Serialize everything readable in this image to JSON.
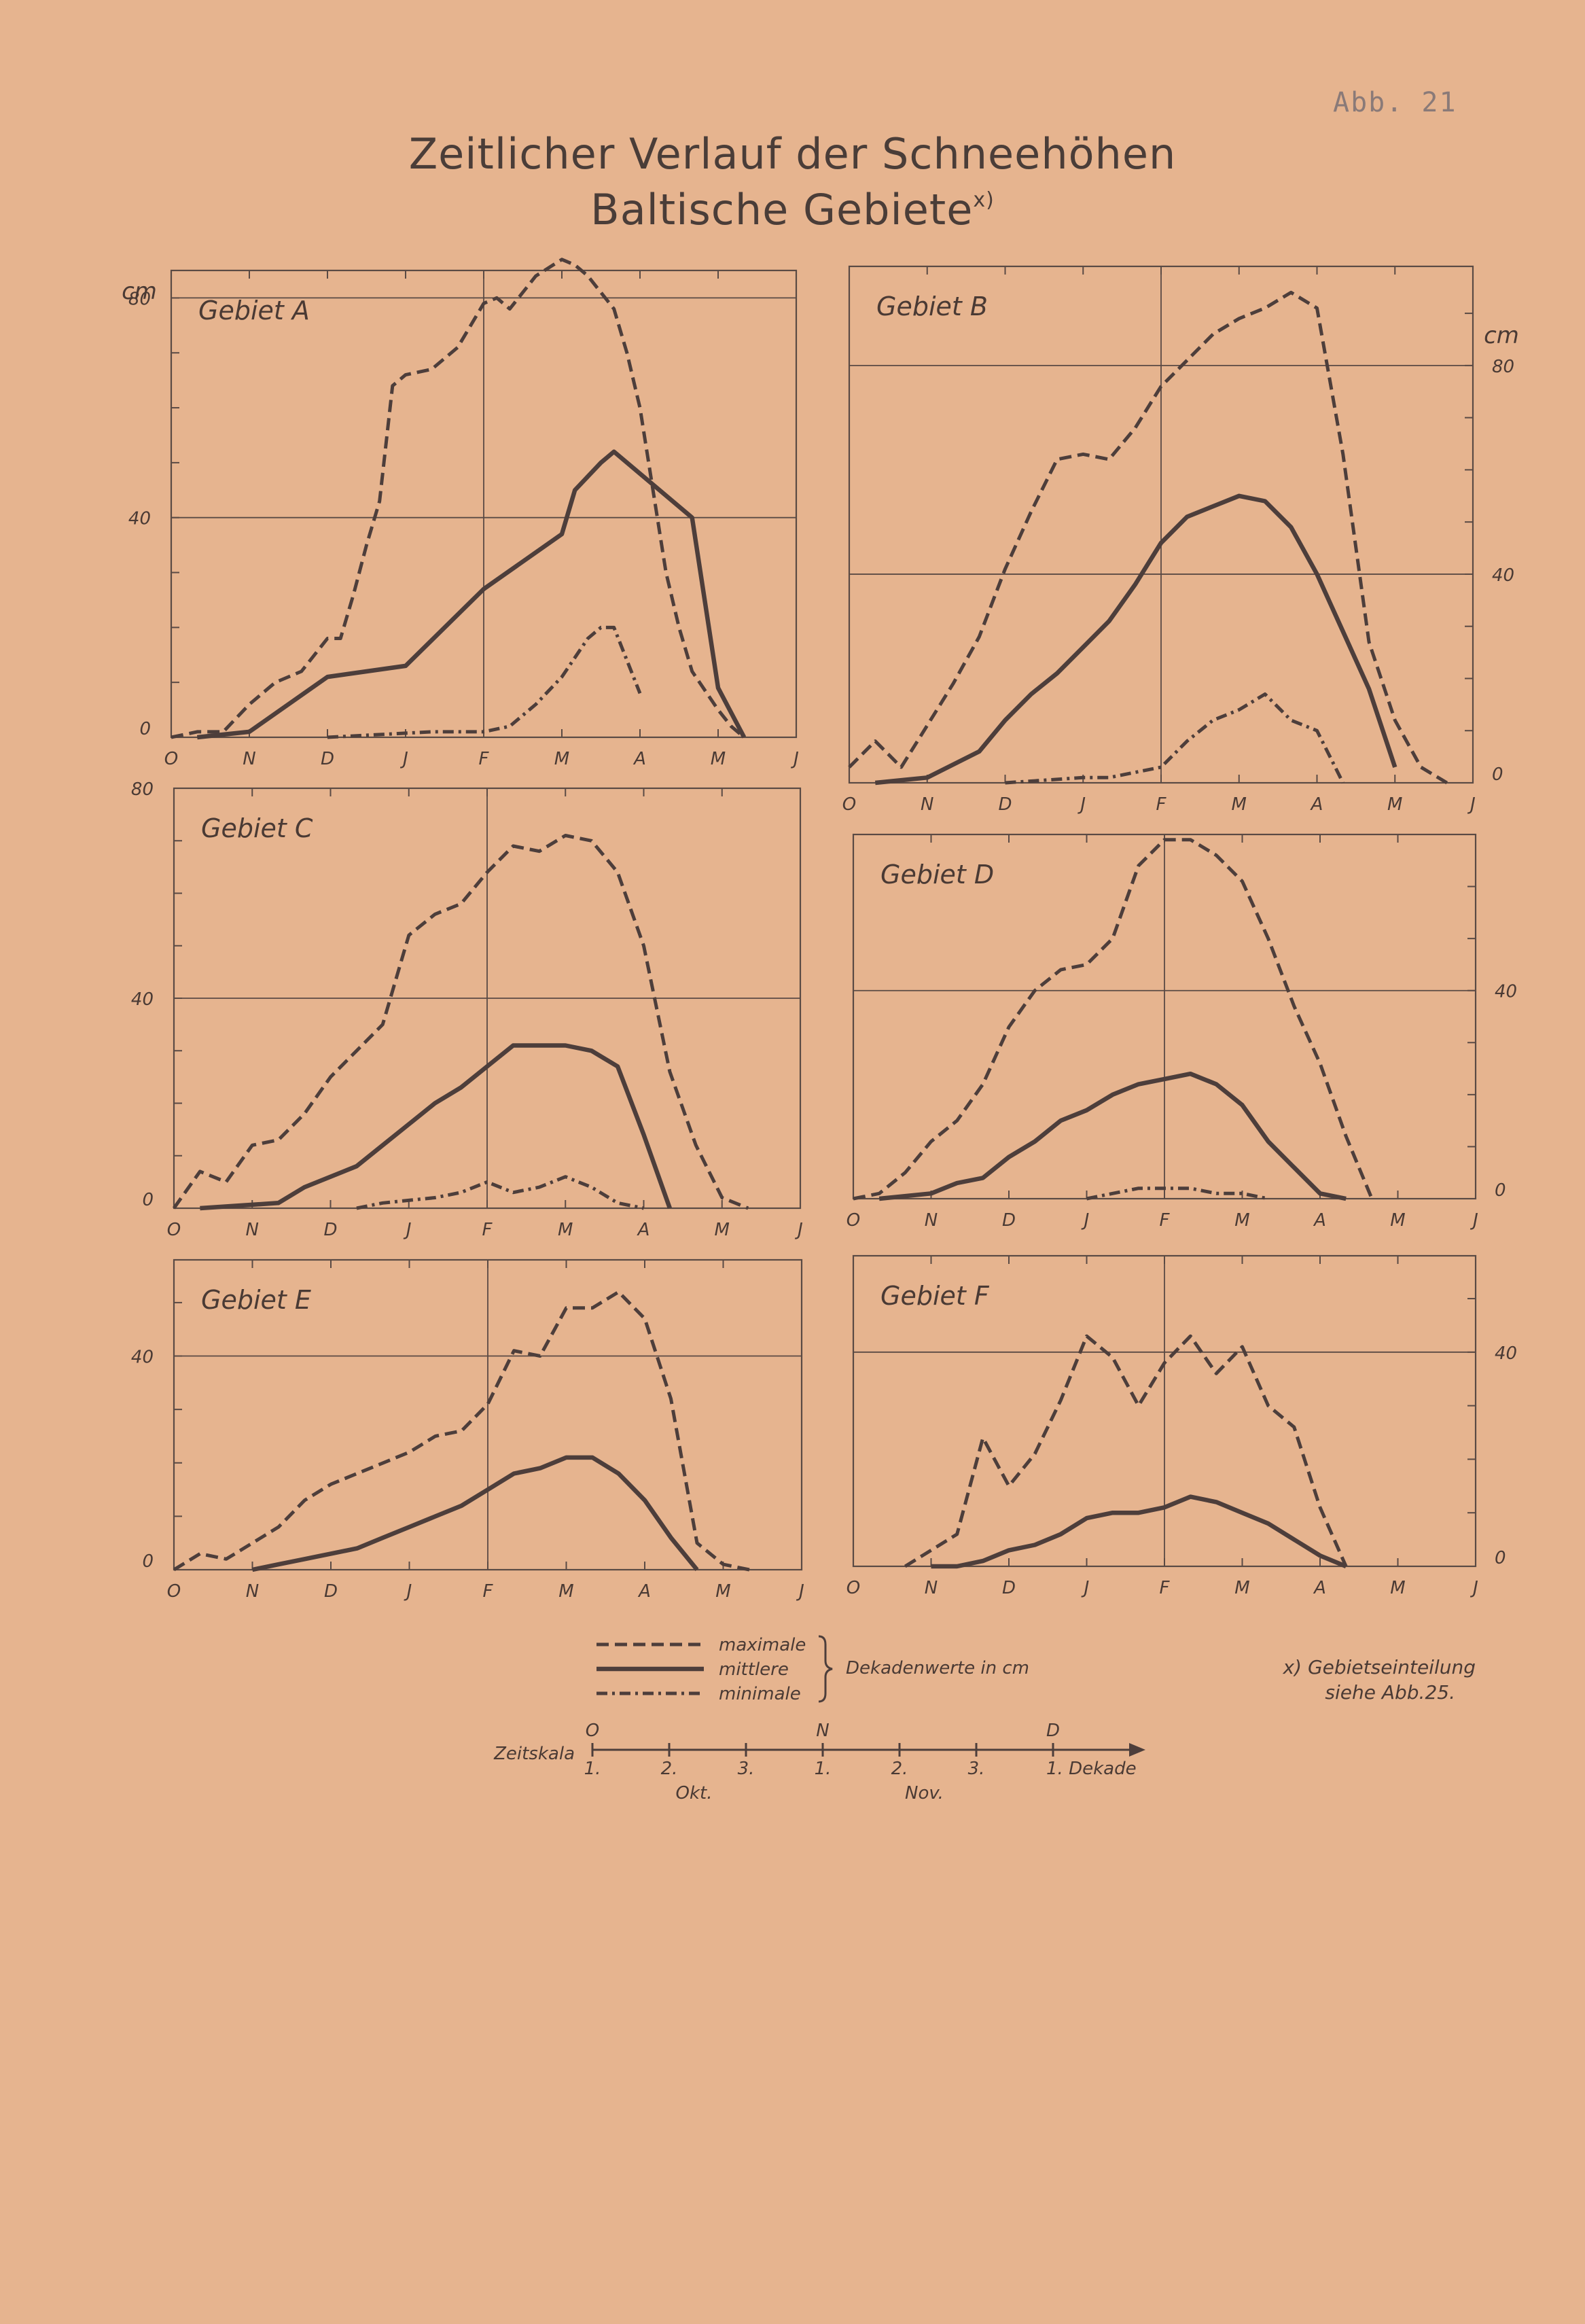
{
  "page_stamp": "Abb. 21",
  "title_line1": "Zeitlicher Verlauf der Schneehöhen",
  "title_line2": "Baltische Gebiete",
  "title_marker": "x)",
  "months": [
    "O",
    "N",
    "D",
    "J",
    "F",
    "M",
    "A",
    "M",
    "J"
  ],
  "unit": "cm",
  "legend": {
    "max": "maximale",
    "mean": "mittlere",
    "min": "minimale",
    "brace": "Dekadenwerte in cm"
  },
  "note": {
    "line1": "x) Gebietseinteilung",
    "line2": "siehe   Abb.25."
  },
  "zeitskala": {
    "label": "Zeitskala",
    "months": [
      "O",
      "N",
      "D"
    ],
    "decades": [
      "1.",
      "2.",
      "3.",
      "1.",
      "2.",
      "3.",
      "1. Dekade"
    ],
    "month_names": [
      "Okt.",
      "Nov."
    ]
  },
  "chart_data": [
    {
      "type": "line",
      "title": "Gebiet A",
      "ylabel": "cm",
      "ylim": [
        0,
        85
      ],
      "yticks": [
        "0",
        "40",
        "80"
      ],
      "grid_y": [
        40,
        80
      ],
      "x": "decade index from 1 Oct (0) to 1 Jun (24)",
      "series": [
        {
          "name": "maximale",
          "x": [
            0,
            1,
            2,
            3,
            4,
            5,
            6,
            6.5,
            7,
            7.5,
            8,
            8.5,
            9,
            10,
            11,
            12,
            12.5,
            13,
            14,
            15,
            15.5,
            16,
            17,
            17.5,
            18,
            19,
            19.5,
            20,
            21,
            21.5,
            22
          ],
          "values": [
            0,
            1,
            1,
            6,
            10,
            12,
            18,
            18,
            26,
            35,
            43,
            64,
            66,
            67,
            71,
            79,
            80,
            78,
            84,
            87,
            86,
            84,
            78,
            70,
            60,
            30,
            20,
            12,
            5,
            2,
            0
          ]
        },
        {
          "name": "mittlere",
          "x": [
            1,
            3,
            6,
            9,
            12,
            15,
            15.5,
            16.5,
            17,
            18,
            20,
            21,
            22
          ],
          "values": [
            0,
            1,
            11,
            13,
            27,
            37,
            45,
            50,
            52,
            48,
            40,
            9,
            0
          ]
        },
        {
          "name": "minimale",
          "x": [
            6,
            10,
            12,
            13,
            14,
            15,
            16,
            16.5,
            17,
            18
          ],
          "values": [
            0,
            1,
            1,
            2,
            6,
            11,
            18,
            20,
            20,
            8
          ]
        }
      ]
    },
    {
      "type": "line",
      "title": "Gebiet B",
      "ylabel": "cm",
      "ylim": [
        0,
        99
      ],
      "yticks": [
        "0",
        "40",
        "80"
      ],
      "grid_y": [
        40,
        80
      ],
      "x": "decade index from 1 Oct (0) to 1 Jun (24)",
      "series": [
        {
          "name": "maximale",
          "x": [
            0,
            1,
            2,
            3,
            4,
            5,
            6,
            7,
            8,
            9,
            10,
            11,
            12,
            13,
            14,
            15,
            16,
            17,
            18,
            19,
            20,
            21,
            22,
            23
          ],
          "values": [
            3,
            8,
            3,
            11,
            19,
            28,
            41,
            52,
            62,
            63,
            62,
            68,
            76,
            81,
            86,
            89,
            91,
            94,
            91,
            63,
            27,
            12,
            3,
            0
          ]
        },
        {
          "name": "mittlere",
          "x": [
            1,
            3,
            5,
            6,
            7,
            8,
            9,
            10,
            11,
            12,
            13,
            14,
            15,
            16,
            17,
            18,
            19,
            20,
            21
          ],
          "values": [
            0,
            1,
            6,
            12,
            17,
            21,
            26,
            31,
            38,
            46,
            51,
            53,
            55,
            54,
            49,
            40,
            29,
            18,
            3
          ]
        },
        {
          "name": "minimale",
          "x": [
            6,
            9,
            10,
            11,
            12,
            13,
            14,
            15,
            16,
            17,
            18,
            19
          ],
          "values": [
            0,
            1,
            1,
            2,
            3,
            8,
            12,
            14,
            17,
            12,
            10,
            0
          ]
        }
      ]
    },
    {
      "type": "line",
      "title": "Gebiet C",
      "ylabel": "cm",
      "ylim": [
        0,
        80
      ],
      "yticks": [
        "0",
        "40",
        "80"
      ],
      "grid_y": [
        40
      ],
      "x": "decade index from 1 Oct (0) to 1 Jun (24)",
      "series": [
        {
          "name": "maximale",
          "x": [
            0,
            1,
            2,
            3,
            4,
            5,
            6,
            7,
            8,
            9,
            10,
            11,
            12,
            13,
            14,
            15,
            16,
            17,
            18,
            19,
            20,
            21,
            22
          ],
          "values": [
            0,
            7,
            5,
            12,
            13,
            18,
            25,
            30,
            35,
            52,
            56,
            58,
            64,
            69,
            68,
            71,
            70,
            64,
            50,
            26,
            12,
            2,
            0
          ]
        },
        {
          "name": "mittlere",
          "x": [
            1,
            4,
            5,
            7,
            8,
            9,
            10,
            11,
            12,
            13,
            14,
            15,
            16,
            17,
            18,
            19
          ],
          "values": [
            0,
            1,
            4,
            8,
            12,
            16,
            20,
            23,
            27,
            31,
            31,
            31,
            30,
            27,
            14,
            0
          ]
        },
        {
          "name": "minimale",
          "x": [
            7,
            8,
            10,
            11,
            12,
            13,
            14,
            15,
            16,
            17,
            18
          ],
          "values": [
            0,
            1,
            2,
            3,
            5,
            3,
            4,
            6,
            4,
            1,
            0
          ]
        }
      ]
    },
    {
      "type": "line",
      "title": "Gebiet D",
      "ylabel": "cm",
      "ylim": [
        0,
        70
      ],
      "yticks": [
        "0",
        "40"
      ],
      "grid_y": [
        40
      ],
      "x": "decade index from 1 Oct (0) to 1 Jun (24)",
      "series": [
        {
          "name": "maximale",
          "x": [
            0,
            1,
            2,
            3,
            4,
            5,
            6,
            7,
            8,
            9,
            10,
            11,
            12,
            13,
            14,
            15,
            16,
            17,
            18,
            19,
            20
          ],
          "values": [
            0,
            1,
            5,
            11,
            15,
            22,
            33,
            40,
            44,
            45,
            50,
            64,
            69,
            69,
            66,
            61,
            50,
            37,
            26,
            12,
            0
          ]
        },
        {
          "name": "mittlere",
          "x": [
            1,
            3,
            4,
            5,
            6,
            7,
            8,
            9,
            10,
            11,
            12,
            13,
            14,
            15,
            16,
            17,
            18,
            19
          ],
          "values": [
            0,
            1,
            3,
            4,
            8,
            11,
            15,
            17,
            20,
            22,
            23,
            24,
            22,
            18,
            11,
            6,
            1,
            0
          ]
        },
        {
          "name": "minimale",
          "x": [
            9,
            10,
            11,
            12,
            13,
            14,
            15,
            16
          ],
          "values": [
            0,
            1,
            2,
            2,
            2,
            1,
            1,
            0
          ]
        }
      ]
    },
    {
      "type": "line",
      "title": "Gebiet E",
      "ylabel": "cm",
      "ylim": [
        0,
        58
      ],
      "yticks": [
        "0",
        "40"
      ],
      "grid_y": [
        40
      ],
      "x": "decade index from 1 Oct (0) to 1 Jun (24)",
      "series": [
        {
          "name": "maximale",
          "x": [
            0,
            1,
            2,
            3,
            4,
            5,
            6,
            7,
            8,
            9,
            10,
            11,
            12,
            13,
            14,
            15,
            16,
            17,
            18,
            19,
            20,
            21,
            22
          ],
          "values": [
            0,
            3,
            2,
            5,
            8,
            13,
            16,
            18,
            20,
            22,
            25,
            26,
            31,
            41,
            40,
            49,
            49,
            52,
            47,
            32,
            5,
            1,
            0
          ]
        },
        {
          "name": "mittlere",
          "x": [
            3,
            4,
            5,
            6,
            7,
            8,
            9,
            10,
            11,
            12,
            13,
            14,
            15,
            16,
            17,
            18,
            19,
            20
          ],
          "values": [
            0,
            1,
            2,
            3,
            4,
            6,
            8,
            10,
            12,
            15,
            18,
            19,
            21,
            21,
            18,
            13,
            6,
            0
          ]
        }
      ]
    },
    {
      "type": "line",
      "title": "Gebiet F",
      "ylabel": "cm",
      "ylim": [
        0,
        58
      ],
      "yticks": [
        "0",
        "40"
      ],
      "grid_y": [
        40
      ],
      "x": "decade index from 1 Oct (0) to 1 Jun (24)",
      "series": [
        {
          "name": "maximale",
          "x": [
            2,
            3,
            4,
            5,
            6,
            7,
            8,
            9,
            10,
            11,
            12,
            13,
            14,
            15,
            16,
            17,
            18,
            19
          ],
          "values": [
            0,
            3,
            6,
            24,
            15,
            21,
            31,
            43,
            39,
            30,
            38,
            43,
            36,
            41,
            30,
            26,
            11,
            0
          ]
        },
        {
          "name": "mittlere",
          "x": [
            3,
            4,
            5,
            6,
            7,
            8,
            9,
            10,
            11,
            12,
            13,
            14,
            15,
            16,
            17,
            18,
            19
          ],
          "values": [
            0,
            0,
            1,
            3,
            4,
            6,
            9,
            10,
            10,
            11,
            13,
            12,
            10,
            8,
            5,
            2,
            0
          ]
        }
      ]
    }
  ]
}
